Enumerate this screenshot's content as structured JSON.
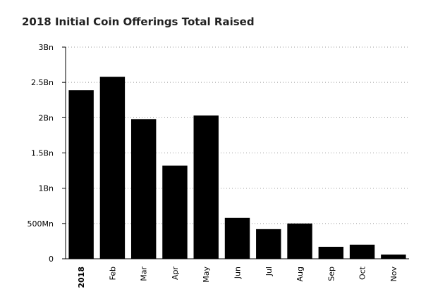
{
  "title": "2018 Initial Coin Offerings Total Raised",
  "chart_data": {
    "type": "bar",
    "title": "2018 Initial Coin Offerings Total Raised",
    "xlabel": "",
    "ylabel": "",
    "categories": [
      "2018",
      "Feb",
      "Mar",
      "Apr",
      "May",
      "Jun",
      "Jul",
      "Aug",
      "Sep",
      "Oct",
      "Nov"
    ],
    "values": [
      2.39,
      2.58,
      1.98,
      1.32,
      2.03,
      0.58,
      0.42,
      0.5,
      0.17,
      0.2,
      0.06
    ],
    "value_unit": "Bn",
    "ylim": [
      0,
      3
    ],
    "yticks": [
      0,
      0.5,
      1,
      1.5,
      2,
      2.5,
      3
    ],
    "ytick_labels": [
      "0",
      "500Mn",
      "1Bn",
      "1.5Bn",
      "2Bn",
      "2.5Bn",
      "3Bn"
    ],
    "bold_categories": [
      "2018"
    ],
    "grid": true,
    "grid_style": "dotted",
    "bar_color": "#000000",
    "legend": "none"
  }
}
